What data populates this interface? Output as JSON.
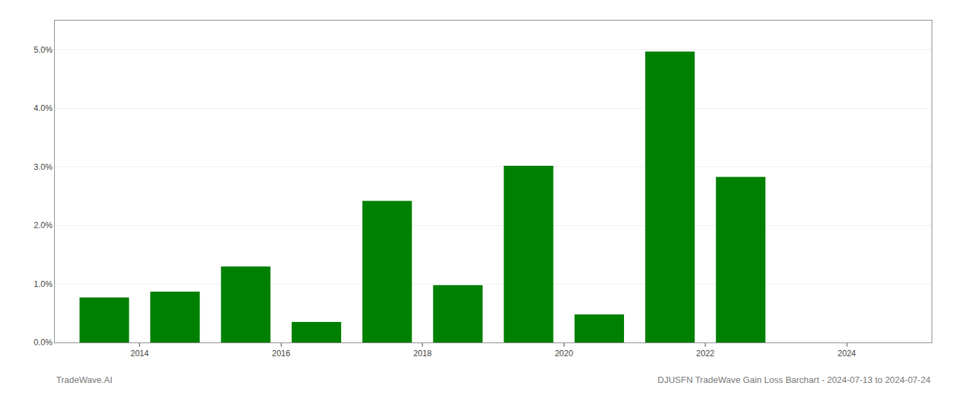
{
  "chart_data": {
    "type": "bar",
    "title": "DJUSFN TradeWave Gain Loss Barchart - 2024-07-13 to 2024-07-24",
    "annotations": [
      "TradeWave.AI"
    ],
    "x": [
      2013,
      2014,
      2015,
      2016,
      2017,
      2018,
      2019,
      2020,
      2021,
      2022
    ],
    "values": [
      0.0077,
      0.0087,
      0.013,
      0.0035,
      0.0242,
      0.0098,
      0.0302,
      0.0048,
      0.0497,
      0.0283
    ],
    "color": "#008000",
    "xlim": [
      2012.3,
      2024.7
    ],
    "xticks": [
      {
        "value": 2013.5,
        "label": "2014"
      },
      {
        "value": 2015.5,
        "label": "2016"
      },
      {
        "value": 2017.5,
        "label": "2018"
      },
      {
        "value": 2019.5,
        "label": "2020"
      },
      {
        "value": 2021.5,
        "label": "2022"
      },
      {
        "value": 2023.5,
        "label": "2024"
      }
    ],
    "ylim": [
      0.0,
      0.055
    ],
    "yticks": [
      {
        "value": 0.0,
        "label": "0.0%"
      },
      {
        "value": 0.01,
        "label": "1.0%"
      },
      {
        "value": 0.02,
        "label": "2.0%"
      },
      {
        "value": 0.03,
        "label": "3.0%"
      },
      {
        "value": 0.04,
        "label": "4.0%"
      },
      {
        "value": 0.05,
        "label": "5.0%"
      }
    ],
    "grid": "y"
  }
}
